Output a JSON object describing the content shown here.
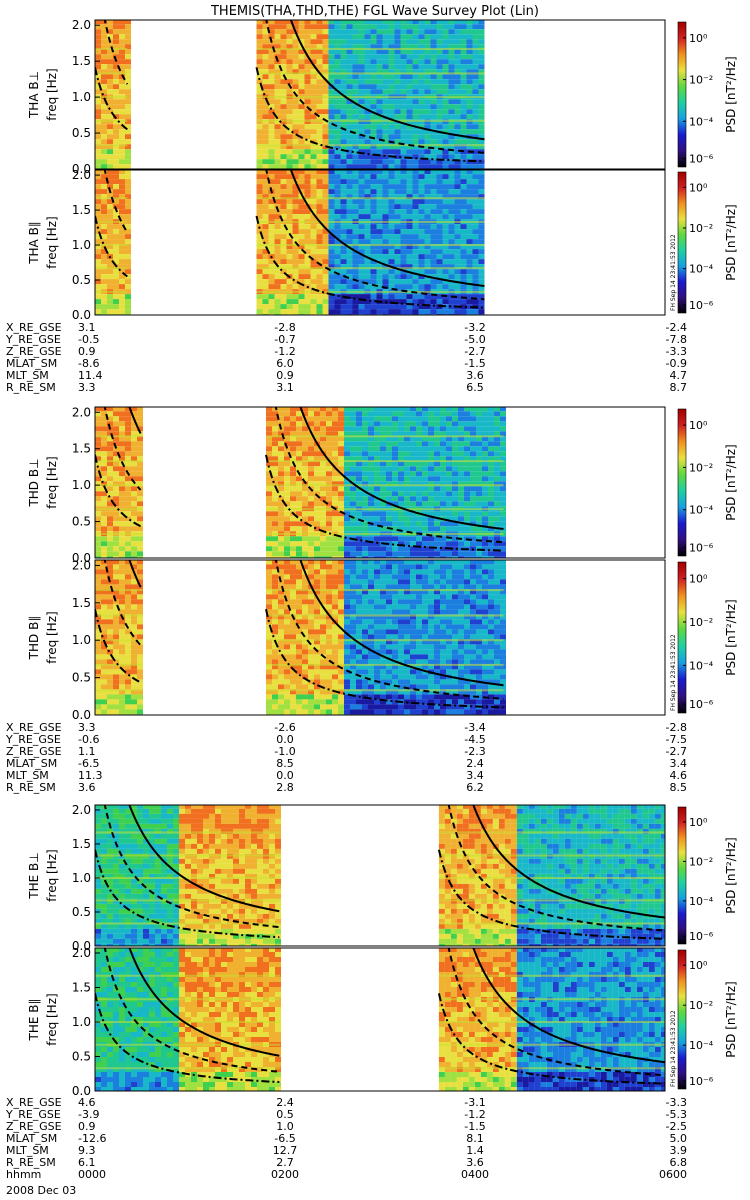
{
  "title": "THEMIS(THA,THD,THE) FGL Wave Survey Plot (Lin)",
  "colorbar": {
    "label": "PSD [nT²/Hz]",
    "ticks": [
      "10⁰",
      "10⁻²",
      "10⁻⁴",
      "10⁻⁶"
    ],
    "stamp": "FH Sep 14 23:41:53 2012"
  },
  "chart_data": {
    "type": "heatmap",
    "x_unit": "hhmm",
    "xlim": [
      "0000",
      "0600"
    ],
    "date": "2008 Dec 03",
    "ylabel_unit": "freq [Hz]",
    "ylim": [
      0.0,
      2.0
    ],
    "yticks": [
      "0.0",
      "0.5",
      "1.0",
      "1.5",
      "2.0"
    ],
    "colormap": "rainbow",
    "scale": "log",
    "panels": [
      {
        "probe": "THA",
        "label": "THA B⊥",
        "data_intervals_hours": [
          [
            0.0,
            0.34
          ],
          [
            1.7,
            4.1
          ]
        ],
        "quiet_start_hour": 2.4
      },
      {
        "probe": "THA",
        "label": "THA B∥",
        "data_intervals_hours": [
          [
            0.0,
            0.34
          ],
          [
            1.7,
            4.1
          ]
        ],
        "quiet_start_hour": 2.4
      },
      {
        "probe": "THD",
        "label": "THD B⊥",
        "data_intervals_hours": [
          [
            0.0,
            0.5
          ],
          [
            1.8,
            4.3
          ]
        ],
        "quiet_start_hour": 2.6
      },
      {
        "probe": "THD",
        "label": "THD B∥",
        "data_intervals_hours": [
          [
            0.0,
            0.5
          ],
          [
            1.8,
            4.3
          ]
        ],
        "quiet_start_hour": 2.6
      },
      {
        "probe": "THE",
        "label": "THE B⊥",
        "data_intervals_hours": [
          [
            0.0,
            1.95
          ],
          [
            3.62,
            6.0
          ]
        ],
        "quiet_end_hour": 0.85,
        "quiet_start_hour": 4.4
      },
      {
        "probe": "THE",
        "label": "THE B∥",
        "data_intervals_hours": [
          [
            0.0,
            1.95
          ],
          [
            3.62,
            6.0
          ]
        ],
        "quiet_end_hour": 0.85,
        "quiet_start_hour": 4.4
      }
    ]
  },
  "ephemeris": [
    {
      "probe": "THA",
      "rows": [
        {
          "label": "X_RE_GSE",
          "values": [
            "3.1",
            "-2.8",
            "-3.2",
            "-2.4"
          ]
        },
        {
          "label": "Y_RE_GSE",
          "values": [
            "-0.5",
            "-0.7",
            "-5.0",
            "-7.8"
          ]
        },
        {
          "label": "Z_RE_GSE",
          "values": [
            "0.9",
            "-1.2",
            "-2.7",
            "-3.3"
          ]
        },
        {
          "label": "MLAT_SM",
          "values": [
            "-8.6",
            "6.0",
            "-1.5",
            "-0.9"
          ]
        },
        {
          "label": "MLT_SM",
          "values": [
            "11.4",
            "0.9",
            "3.6",
            "4.7"
          ]
        },
        {
          "label": "R_RE_SM",
          "values": [
            "3.3",
            "3.1",
            "6.5",
            "8.7"
          ]
        }
      ]
    },
    {
      "probe": "THD",
      "rows": [
        {
          "label": "X_RE_GSE",
          "values": [
            "3.3",
            "-2.6",
            "-3.4",
            "-2.8"
          ]
        },
        {
          "label": "Y_RE_GSE",
          "values": [
            "-0.6",
            "0.0",
            "-4.5",
            "-7.5"
          ]
        },
        {
          "label": "Z_RE_GSE",
          "values": [
            "1.1",
            "-1.0",
            "-2.3",
            "-2.7"
          ]
        },
        {
          "label": "MLAT_SM",
          "values": [
            "-6.5",
            "8.5",
            "2.4",
            "3.4"
          ]
        },
        {
          "label": "MLT_SM",
          "values": [
            "11.3",
            "0.0",
            "3.4",
            "4.6"
          ]
        },
        {
          "label": "R_RE_SM",
          "values": [
            "3.6",
            "2.8",
            "6.2",
            "8.5"
          ]
        }
      ]
    },
    {
      "probe": "THE",
      "rows": [
        {
          "label": "X_RE_GSE",
          "values": [
            "4.6",
            "2.4",
            "-3.1",
            "-3.3"
          ]
        },
        {
          "label": "Y_RE_GSE",
          "values": [
            "-3.9",
            "0.5",
            "-1.2",
            "-5.3"
          ]
        },
        {
          "label": "Z_RE_GSE",
          "values": [
            "0.9",
            "1.0",
            "-1.5",
            "-2.5"
          ]
        },
        {
          "label": "MLAT_SM",
          "values": [
            "-12.6",
            "-6.5",
            "8.1",
            "5.0"
          ]
        },
        {
          "label": "MLT_SM",
          "values": [
            "9.3",
            "12.7",
            "1.4",
            "3.9"
          ]
        },
        {
          "label": "R_RE_SM",
          "values": [
            "6.1",
            "2.7",
            "3.6",
            "6.8"
          ]
        },
        {
          "label": "hhmm",
          "values": [
            "0000",
            "0200",
            "0400",
            "0600"
          ]
        }
      ]
    }
  ]
}
